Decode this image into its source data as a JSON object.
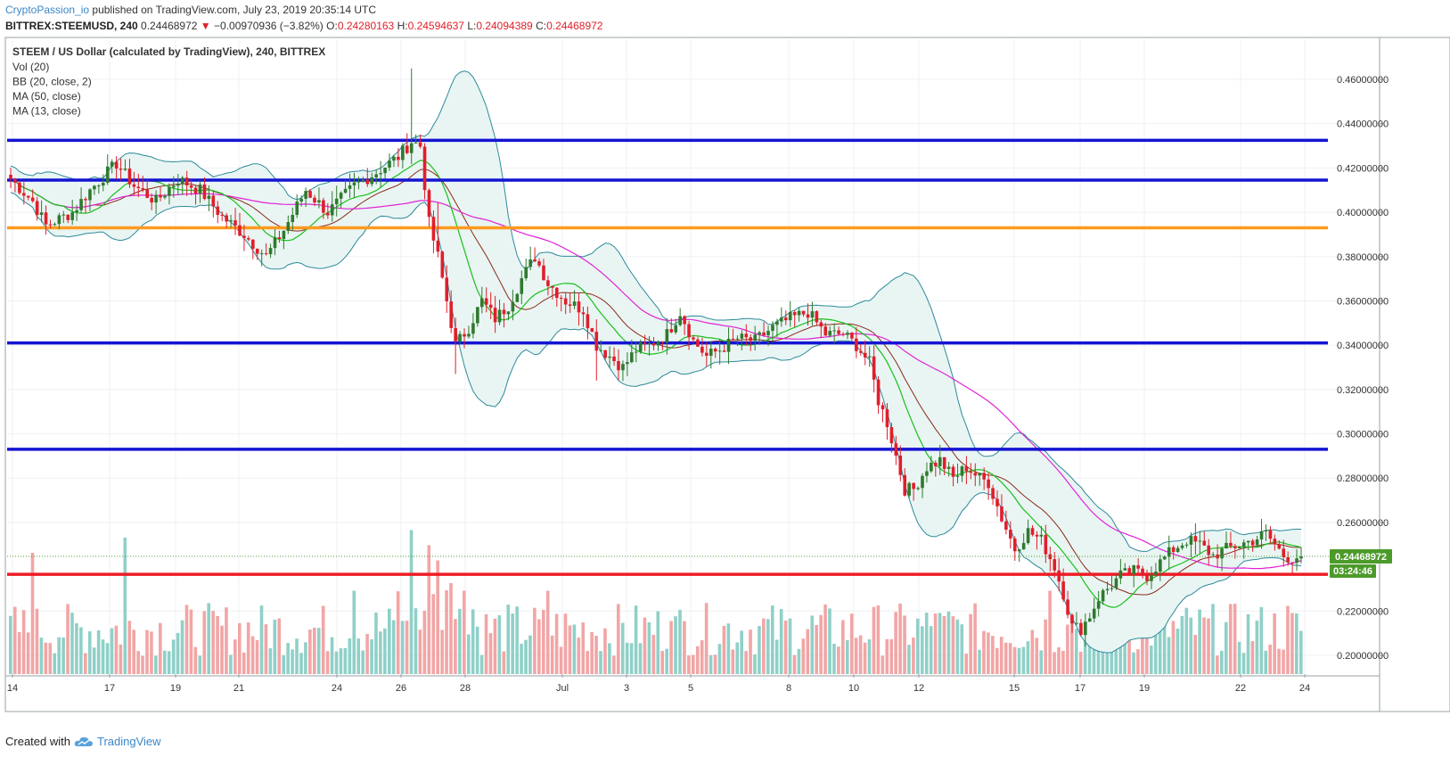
{
  "header": {
    "author": "CryptoPassion_io",
    "published": "published on TradingView.com, July 23, 2019 20:35:14 UTC",
    "symbol": "BITTREX:STEEMUSD, 240",
    "last": "0.24468972",
    "change": "−0.00970936 (−3.82%)",
    "o_label": "O:",
    "o_value": "0.24280163",
    "h_label": "H:",
    "h_value": "0.24594637",
    "l_label": "L:",
    "l_value": "0.24094389",
    "c_label": "C:",
    "c_value": "0.24468972"
  },
  "legend": {
    "title": "STEEM / US Dollar (calculated by TradingView), 240, BITTREX",
    "items": [
      "Vol (20)",
      "BB (20, close, 2)",
      "MA (50, close)",
      "MA (13, close)"
    ]
  },
  "footer": {
    "created": "Created with",
    "brand": "TradingView"
  },
  "colors": {
    "up": "#2f7a2f",
    "down": "#e01e2b",
    "blue_level": "#1414d2",
    "orange_level": "#ff9a1f",
    "red_level": "#ee1c25",
    "bb_fill": "#e9f5f3",
    "bb_line": "#2d8a9a",
    "ma50": "#e023d8",
    "ma13": "#18c01a",
    "basis": "#8b2a1a",
    "vol_up": "#8fd0c8",
    "vol_down": "#f2a5a5",
    "price_tag": "#4c9a2a"
  },
  "chart_data": {
    "type": "candlestick",
    "price_range": [
      0.19,
      0.47
    ],
    "y_ticks": [
      "0.46000000",
      "0.44000000",
      "0.42000000",
      "0.40000000",
      "0.38000000",
      "0.36000000",
      "0.34000000",
      "0.32000000",
      "0.30000000",
      "0.28000000",
      "0.26000000",
      "0.22000000",
      "0.20000000"
    ],
    "x_ticks": [
      "14",
      "17",
      "19",
      "21",
      "24",
      "26",
      "28",
      "Jul",
      "3",
      "5",
      "8",
      "10",
      "12",
      "15",
      "17",
      "19",
      "22",
      "24"
    ],
    "levels": [
      {
        "price": 0.4325,
        "color": "blue"
      },
      {
        "price": 0.4145,
        "color": "blue"
      },
      {
        "price": 0.393,
        "color": "orange"
      },
      {
        "price": 0.341,
        "color": "blue"
      },
      {
        "price": 0.293,
        "color": "blue"
      },
      {
        "price": 0.2366,
        "color": "red"
      }
    ],
    "last_price": "0.24468972",
    "countdown": "03:24:46",
    "waypoints": [
      [
        0,
        0.415
      ],
      [
        5,
        0.405
      ],
      [
        8,
        0.394
      ],
      [
        14,
        0.4
      ],
      [
        18,
        0.41
      ],
      [
        24,
        0.422
      ],
      [
        28,
        0.412
      ],
      [
        33,
        0.405
      ],
      [
        38,
        0.415
      ],
      [
        43,
        0.41
      ],
      [
        48,
        0.398
      ],
      [
        53,
        0.39
      ],
      [
        58,
        0.38
      ],
      [
        62,
        0.392
      ],
      [
        67,
        0.41
      ],
      [
        72,
        0.4
      ],
      [
        78,
        0.412
      ],
      [
        83,
        0.418
      ],
      [
        88,
        0.425
      ],
      [
        91,
        0.432
      ],
      [
        93,
        0.43
      ],
      [
        95,
        0.395
      ],
      [
        97,
        0.38
      ],
      [
        99,
        0.36
      ],
      [
        101,
        0.34
      ],
      [
        104,
        0.348
      ],
      [
        107,
        0.36
      ],
      [
        110,
        0.352
      ],
      [
        113,
        0.358
      ],
      [
        116,
        0.37
      ],
      [
        119,
        0.38
      ],
      [
        122,
        0.368
      ],
      [
        126,
        0.36
      ],
      [
        130,
        0.356
      ],
      [
        133,
        0.34
      ],
      [
        136,
        0.335
      ],
      [
        139,
        0.33
      ],
      [
        142,
        0.338
      ],
      [
        145,
        0.34
      ],
      [
        149,
        0.345
      ],
      [
        152,
        0.355
      ],
      [
        155,
        0.342
      ],
      [
        158,
        0.335
      ],
      [
        161,
        0.338
      ],
      [
        165,
        0.343
      ],
      [
        169,
        0.342
      ],
      [
        173,
        0.348
      ],
      [
        177,
        0.352
      ],
      [
        181,
        0.355
      ],
      [
        185,
        0.345
      ],
      [
        189,
        0.345
      ],
      [
        192,
        0.34
      ],
      [
        195,
        0.332
      ],
      [
        197,
        0.315
      ],
      [
        199,
        0.305
      ],
      [
        201,
        0.29
      ],
      [
        203,
        0.275
      ],
      [
        205,
        0.275
      ],
      [
        208,
        0.285
      ],
      [
        211,
        0.288
      ],
      [
        214,
        0.28
      ],
      [
        217,
        0.285
      ],
      [
        220,
        0.28
      ],
      [
        222,
        0.278
      ],
      [
        225,
        0.262
      ],
      [
        228,
        0.248
      ],
      [
        231,
        0.256
      ],
      [
        234,
        0.252
      ],
      [
        237,
        0.24
      ],
      [
        239,
        0.228
      ],
      [
        241,
        0.213
      ],
      [
        243,
        0.212
      ],
      [
        245,
        0.218
      ],
      [
        247,
        0.226
      ],
      [
        250,
        0.232
      ],
      [
        252,
        0.236
      ],
      [
        255,
        0.238
      ],
      [
        258,
        0.236
      ],
      [
        261,
        0.242
      ],
      [
        264,
        0.248
      ],
      [
        267,
        0.252
      ],
      [
        270,
        0.25
      ],
      [
        273,
        0.245
      ],
      [
        276,
        0.248
      ],
      [
        279,
        0.25
      ],
      [
        282,
        0.252
      ],
      [
        285,
        0.255
      ],
      [
        287,
        0.25
      ],
      [
        289,
        0.245
      ],
      [
        291,
        0.244
      ],
      [
        293,
        0.245
      ]
    ]
  }
}
